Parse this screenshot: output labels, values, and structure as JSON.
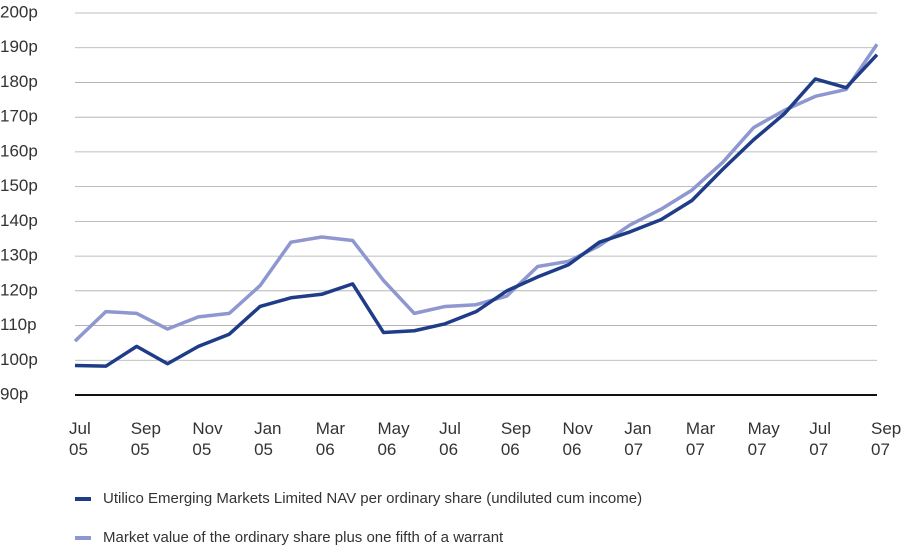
{
  "chart_data": {
    "type": "line",
    "categories": [
      "Jul\n05",
      null,
      "Sep\n05",
      null,
      "Nov\n05",
      null,
      "Jan\n05",
      null,
      "Mar\n06",
      null,
      "May\n06",
      null,
      "Jul\n06",
      null,
      "Sep\n06",
      null,
      "Nov\n06",
      null,
      "Jan\n07",
      null,
      "Mar\n07",
      null,
      "May\n07",
      null,
      "Jul\n07",
      null,
      "Sep\n07"
    ],
    "series": [
      {
        "name": "Utilico Emerging Markets Limited NAV per ordinary share (undiluted cum income)",
        "color": "#1f3c88",
        "values": [
          98.5,
          98.3,
          104,
          99,
          104,
          107.5,
          115.5,
          118,
          119,
          122,
          108,
          108.5,
          110.5,
          114,
          120,
          124,
          127.5,
          134,
          137,
          140.5,
          146,
          155,
          163.5,
          171,
          181,
          178.5,
          188
        ]
      },
      {
        "name": "Market value of the ordinary share plus one fifth of a warrant",
        "color": "#8e97cf",
        "values": [
          105.5,
          114,
          113.5,
          109,
          112.5,
          113.5,
          121.5,
          134,
          135.5,
          134.5,
          123,
          113.5,
          115.5,
          116,
          118.5,
          127,
          128.5,
          133,
          139,
          143.5,
          149,
          157,
          167,
          172,
          176,
          178,
          191
        ]
      }
    ],
    "ylim": [
      90,
      200
    ],
    "yticks": [
      {
        "value": 90,
        "label": "90p"
      },
      {
        "value": 100,
        "label": "100p"
      },
      {
        "value": 110,
        "label": "110p"
      },
      {
        "value": 120,
        "label": "120p"
      },
      {
        "value": 130,
        "label": "130p"
      },
      {
        "value": 140,
        "label": "140p"
      },
      {
        "value": 150,
        "label": "150p"
      },
      {
        "value": 160,
        "label": "160p"
      },
      {
        "value": 170,
        "label": "170p"
      },
      {
        "value": 180,
        "label": "180p"
      },
      {
        "value": 190,
        "label": "190p"
      },
      {
        "value": 200,
        "label": "200p"
      }
    ],
    "grid": true
  }
}
